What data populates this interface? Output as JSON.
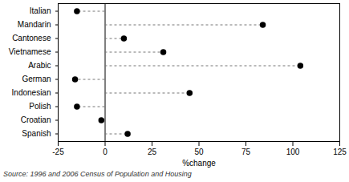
{
  "chart_data": {
    "type": "dot",
    "orientation": "horizontal",
    "categories": [
      "Italian",
      "Mandarin",
      "Cantonese",
      "Vietnamese",
      "Arabic",
      "German",
      "Indonesian",
      "Polish",
      "Croatian",
      "Spanish"
    ],
    "values": [
      -15,
      84,
      10,
      31,
      104,
      -16,
      45,
      -15,
      -2,
      12
    ],
    "color": "#000000",
    "xlabel": "%change",
    "xlim": [
      -25,
      125
    ],
    "xticks": [
      -25,
      0,
      25,
      50,
      75,
      100,
      125
    ],
    "grid": false,
    "source": "Source: 1996 and 2006 Census of Population and Housing"
  }
}
